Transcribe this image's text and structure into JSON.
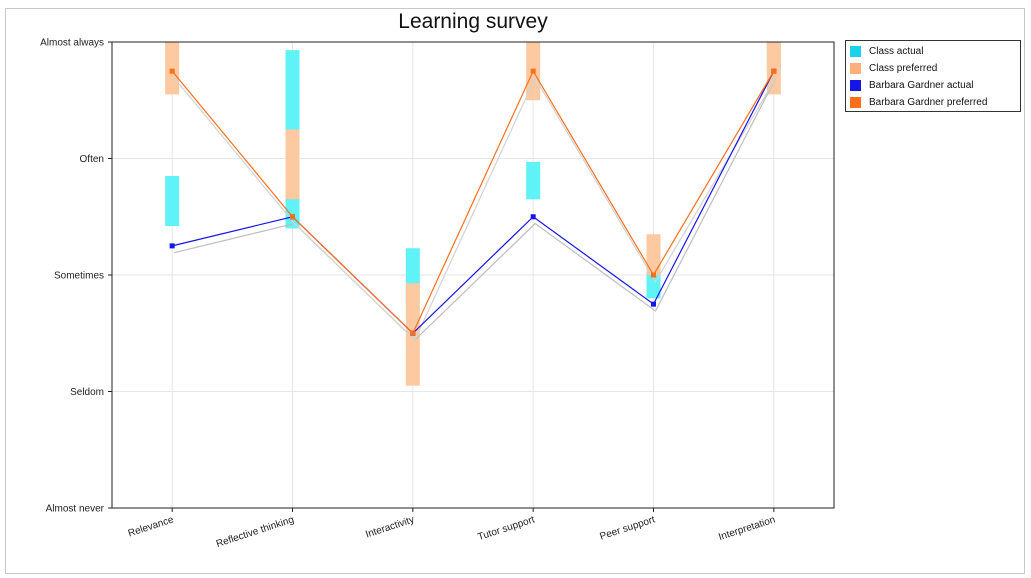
{
  "chart_data": {
    "type": "line",
    "title": "Learning survey",
    "xlabel": "",
    "ylabel": "",
    "categories": [
      "Relevance",
      "Reflective thinking",
      "Interactivity",
      "Tutor support",
      "Peer support",
      "Interpretation"
    ],
    "y_tick_labels": [
      "Almost never",
      "Seldom",
      "Sometimes",
      "Often",
      "Almost always"
    ],
    "ylim": [
      1,
      5
    ],
    "grid": true,
    "legend_position": "top-right",
    "range_series": [
      {
        "name": "Class actual",
        "color": "#5ff2f7",
        "low": [
          3.42,
          3.4,
          2.75,
          3.65,
          2.8,
          4.75
        ],
        "high": [
          3.85,
          4.93,
          3.23,
          3.97,
          3.0,
          5.0
        ]
      },
      {
        "name": "Class preferred",
        "color": "#fcc9a0",
        "low": [
          4.55,
          3.65,
          2.05,
          4.5,
          3.0,
          4.55
        ],
        "high": [
          5.0,
          4.25,
          2.93,
          5.0,
          3.35,
          5.0
        ]
      }
    ],
    "series": [
      {
        "name": "Barbara Gardner actual",
        "color": "#1515e6",
        "values": [
          3.25,
          3.5,
          2.5,
          3.5,
          2.75,
          4.75
        ]
      },
      {
        "name": "Barbara Gardner preferred",
        "color": "#ff6f1a",
        "values": [
          4.75,
          3.5,
          2.5,
          4.75,
          3.0,
          4.75
        ]
      }
    ],
    "class_mean_series": [
      {
        "color": "#bdbdbd",
        "values": [
          3.2,
          3.45,
          2.45,
          3.45,
          2.7,
          4.7
        ]
      },
      {
        "color": "#d2d2d2",
        "values": [
          4.7,
          3.45,
          2.45,
          4.7,
          2.95,
          4.7
        ]
      }
    ]
  }
}
